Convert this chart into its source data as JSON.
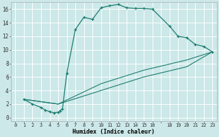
{
  "xlabel": "Humidex (Indice chaleur)",
  "bg_color": "#cce8e8",
  "grid_color": "#ffffff",
  "line_color": "#1a7a6e",
  "xlim": [
    -0.5,
    23.5
  ],
  "ylim": [
    -0.5,
    17
  ],
  "curve1_x": [
    1,
    2,
    3,
    3.5,
    4,
    4.5,
    5,
    5.2,
    5.5,
    6,
    7,
    8,
    9,
    10,
    11,
    12,
    13,
    14,
    15,
    16,
    18,
    19,
    20,
    21,
    22,
    23
  ],
  "curve1_y": [
    2.7,
    2.0,
    1.5,
    1.1,
    0.9,
    0.7,
    0.8,
    1.0,
    1.3,
    6.5,
    13.0,
    14.8,
    14.5,
    16.2,
    16.5,
    16.7,
    16.2,
    16.1,
    16.1,
    16.0,
    13.5,
    12.0,
    11.8,
    10.8,
    10.5,
    9.7
  ],
  "curve2_x": [
    1,
    5,
    10,
    15,
    20,
    23
  ],
  "curve2_y": [
    2.7,
    2.0,
    5.0,
    7.0,
    8.5,
    9.7
  ],
  "curve3_x": [
    1,
    5,
    10,
    15,
    20,
    23
  ],
  "curve3_y": [
    2.7,
    2.0,
    4.0,
    6.0,
    7.5,
    9.7
  ],
  "yticks": [
    0,
    2,
    4,
    6,
    8,
    10,
    12,
    14,
    16
  ],
  "xtick_labels": [
    "0",
    "1",
    "2",
    "3",
    "4",
    "5",
    "6",
    "7",
    "8",
    "9",
    "10",
    "11",
    "12",
    "13",
    "14",
    "15",
    "16",
    "",
    "18",
    "19",
    "20",
    "21",
    "22",
    "23"
  ],
  "xtick_positions": [
    0,
    1,
    2,
    3,
    4,
    5,
    6,
    7,
    8,
    9,
    10,
    11,
    12,
    13,
    14,
    15,
    16,
    17,
    18,
    19,
    20,
    21,
    22,
    23
  ]
}
